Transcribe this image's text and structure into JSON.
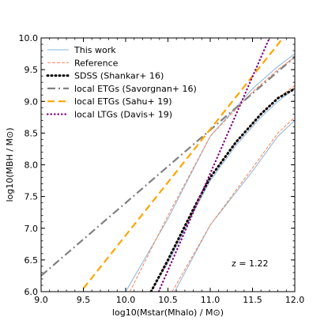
{
  "chart_data": {
    "type": "line",
    "xlabel": "log10(Mstar(Mhalo) / M⊙)",
    "ylabel": "log10(MBH / M⊙)",
    "xlim": [
      9.0,
      12.0
    ],
    "ylim": [
      6.0,
      10.0
    ],
    "x_ticks": [
      9.0,
      9.5,
      10.0,
      10.5,
      11.0,
      11.5,
      12.0
    ],
    "x_tick_labels": [
      "9.0",
      "9.5",
      "10.0",
      "10.5",
      "11.0",
      "11.5",
      "12.0"
    ],
    "y_ticks": [
      6.0,
      6.5,
      7.0,
      7.5,
      8.0,
      8.5,
      9.0,
      9.5,
      10.0
    ],
    "y_tick_labels": [
      "6.0",
      "6.5",
      "7.0",
      "7.5",
      "8.0",
      "8.5",
      "9.0",
      "9.5",
      "10.0"
    ],
    "annotation": "z = 1.22",
    "legend_position": "top-left",
    "grid": false,
    "series": [
      {
        "name": "This work",
        "color": "#8ab4d8",
        "style": "solid",
        "x": [
          10.3,
          10.5,
          10.8,
          11.0,
          11.3,
          11.6,
          11.8,
          12.0
        ],
        "y": [
          6.0,
          6.45,
          7.25,
          7.75,
          8.3,
          8.75,
          9.0,
          9.2
        ]
      },
      {
        "name": "This work (upper)",
        "legend": false,
        "color": "#8ab4d8",
        "style": "solid",
        "x": [
          10.0,
          10.5,
          11.0,
          11.5,
          11.8,
          12.0
        ],
        "y": [
          6.0,
          7.15,
          8.45,
          9.2,
          9.55,
          9.75
        ]
      },
      {
        "name": "This work (lower)",
        "legend": false,
        "color": "#8ab4d8",
        "style": "solid",
        "x": [
          10.58,
          11.0,
          11.5,
          11.8,
          12.0
        ],
        "y": [
          6.0,
          7.05,
          7.9,
          8.45,
          8.7
        ]
      },
      {
        "name": "Reference",
        "color": "#ff7f50",
        "style": "dashed",
        "x": [
          10.3,
          10.5,
          10.8,
          11.0,
          11.3,
          11.6,
          11.8,
          12.0
        ],
        "y": [
          6.0,
          6.5,
          7.3,
          7.8,
          8.35,
          8.8,
          9.05,
          9.25
        ]
      },
      {
        "name": "Reference (upper)",
        "legend": false,
        "color": "#ff7f50",
        "style": "dashed",
        "x": [
          10.05,
          10.5,
          11.0,
          11.5,
          11.8,
          12.0
        ],
        "y": [
          6.0,
          7.2,
          8.45,
          9.15,
          9.5,
          9.7
        ]
      },
      {
        "name": "Reference (lower)",
        "legend": false,
        "color": "#ff7f50",
        "style": "dashed",
        "x": [
          10.55,
          11.0,
          11.5,
          11.8,
          12.0
        ],
        "y": [
          6.0,
          7.05,
          7.95,
          8.5,
          8.75
        ]
      },
      {
        "name": "SDSS (Shankar+ 16)",
        "color": "#000000",
        "style": "dotted-thick",
        "x": [
          10.3,
          10.5,
          10.8,
          11.0,
          11.3,
          11.6,
          11.8,
          12.0
        ],
        "y": [
          6.0,
          6.5,
          7.3,
          7.8,
          8.35,
          8.8,
          9.05,
          9.2
        ]
      },
      {
        "name": "local ETGs (Savorgnan+ 16)",
        "color": "#808080",
        "style": "dashdot",
        "x": [
          9.0,
          12.0
        ],
        "y": [
          6.25,
          9.7
        ]
      },
      {
        "name": "local ETGs (Sahu+ 19)",
        "color": "#ffa500",
        "style": "dashed-long",
        "x": [
          9.5,
          11.86
        ],
        "y": [
          6.05,
          10.0
        ]
      },
      {
        "name": "local LTGs (Davis+ 19)",
        "color": "#800080",
        "style": "dotted",
        "x": [
          10.39,
          11.7
        ],
        "y": [
          6.0,
          10.0
        ]
      }
    ]
  }
}
